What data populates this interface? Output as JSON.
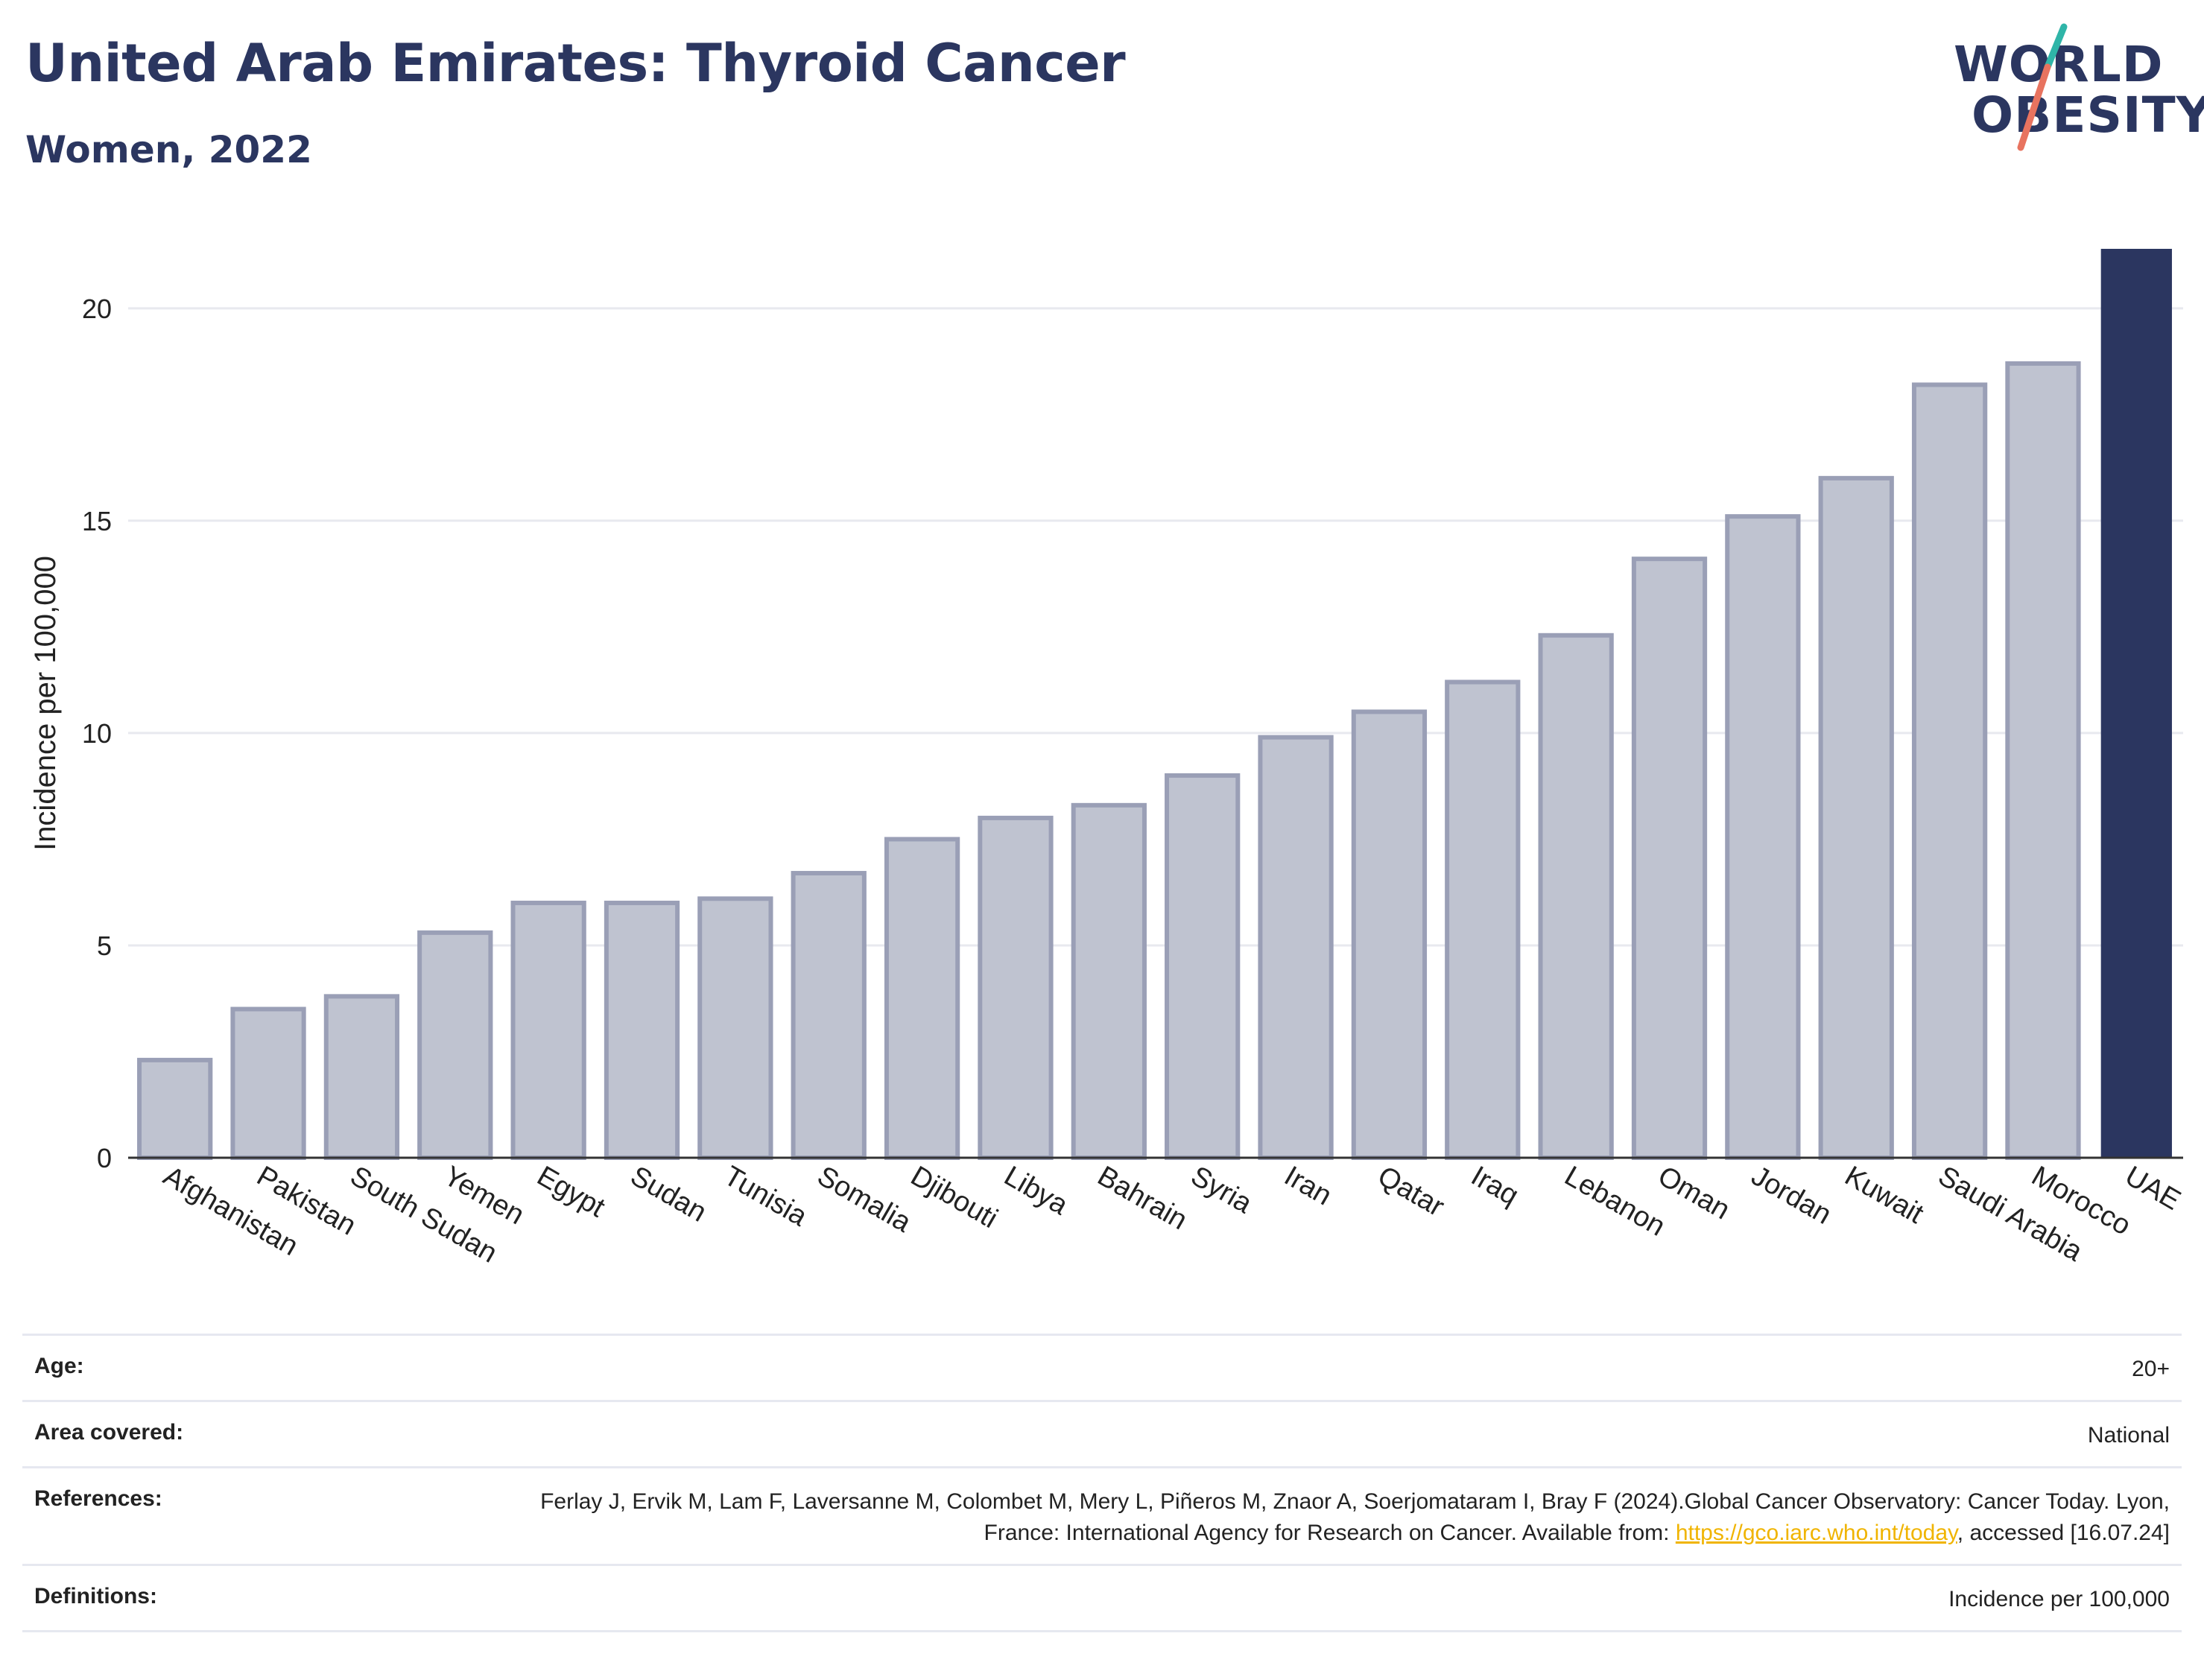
{
  "header": {
    "title": "United Arab Emirates: Thyroid Cancer",
    "subtitle": "Women, 2022"
  },
  "logo": {
    "line1": "WORLD",
    "line2": "OBESITY"
  },
  "colors": {
    "highlight": "#2b3660",
    "bar_fill": "#bfc3d0",
    "bar_stroke": "#9a9fb6",
    "grid": "#e8e9ef"
  },
  "chart_data": {
    "type": "bar",
    "ylabel": "Incidence per 100,000",
    "ylim": [
      0,
      21.4
    ],
    "yticks": [
      0,
      5,
      10,
      15,
      20
    ],
    "grid": true,
    "highlight": "UAE",
    "categories": [
      "Afghanistan",
      "Pakistan",
      "South Sudan",
      "Yemen",
      "Egypt",
      "Sudan",
      "Tunisia",
      "Somalia",
      "Djibouti",
      "Libya",
      "Bahrain",
      "Syria",
      "Iran",
      "Qatar",
      "Iraq",
      "Lebanon",
      "Oman",
      "Jordan",
      "Kuwait",
      "Saudi Arabia",
      "Morocco",
      "UAE"
    ],
    "values": [
      2.3,
      3.5,
      3.8,
      5.3,
      6.0,
      6.0,
      6.1,
      6.7,
      7.5,
      8.0,
      8.3,
      9.0,
      9.9,
      10.5,
      11.2,
      12.3,
      14.1,
      15.1,
      16.0,
      18.2,
      18.7,
      21.4
    ]
  },
  "info": {
    "age_label": "Age:",
    "age_value": "20+",
    "area_label": "Area covered:",
    "area_value": "National",
    "ref_label": "References:",
    "ref_text1": "Ferlay J, Ervik M, Lam F, Laversanne M, Colombet M, Mery L, Piñeros M, Znaor A, Soerjomataram I, Bray F (2024).Global Cancer Observatory: Cancer Today. Lyon, France: International Agency for Research on Cancer. Available from: ",
    "ref_link": "https://gco.iarc.who.int/today",
    "ref_text2": ", accessed [16.07.24]",
    "def_label": "Definitions:",
    "def_value": "Incidence per 100,000"
  }
}
